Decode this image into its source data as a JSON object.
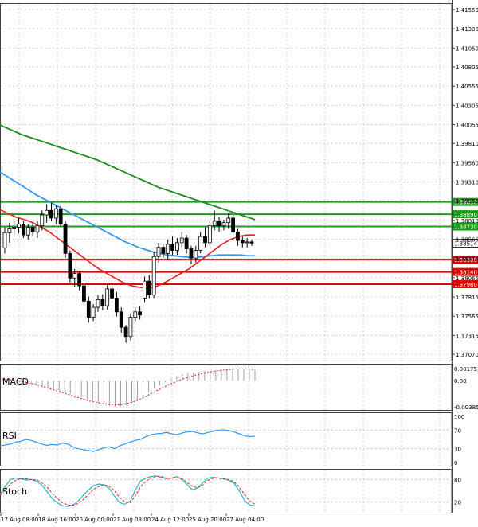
{
  "chart_data": {
    "type": "candlestick",
    "panels": {
      "price": {
        "y_ticks": [
          "1.41550",
          "1.41300",
          "1.41050",
          "1.40805",
          "1.40555",
          "1.40305",
          "1.40055",
          "1.39810",
          "1.39560",
          "1.39310",
          "1.39065",
          "1.38810",
          "1.38565",
          "1.38315",
          "1.38065",
          "1.37815",
          "1.37565",
          "1.37315",
          "1.37070"
        ],
        "ylim": [
          1.3707,
          1.416
        ],
        "h_lines": [
          {
            "value": 1.3905,
            "label": "1.39050",
            "color": "#1a9d1a"
          },
          {
            "value": 1.3889,
            "label": "1.38890",
            "color": "#1a9d1a"
          },
          {
            "value": 1.3873,
            "label": "1.38730",
            "color": "#1a9d1a"
          },
          {
            "value": 1.383,
            "label": "1.38300",
            "color": "#e00000"
          },
          {
            "value": 1.3814,
            "label": "1.38140",
            "color": "#e00000"
          },
          {
            "value": 1.3798,
            "label": "1.37980",
            "color": "#e00000"
          }
        ],
        "current_price": {
          "value": 1.38514,
          "label": "1.38514"
        },
        "candles": [
          [
            1.3845,
            1.3872,
            1.3838,
            1.3865
          ],
          [
            1.3865,
            1.3878,
            1.3852,
            1.387
          ],
          [
            1.387,
            1.388,
            1.386,
            1.3872
          ],
          [
            1.3872,
            1.3884,
            1.3864,
            1.3876
          ],
          [
            1.3876,
            1.388,
            1.3858,
            1.3862
          ],
          [
            1.3862,
            1.3876,
            1.3856,
            1.3872
          ],
          [
            1.3872,
            1.3878,
            1.386,
            1.3866
          ],
          [
            1.3866,
            1.388,
            1.3858,
            1.3874
          ],
          [
            1.3874,
            1.3894,
            1.3868,
            1.3888
          ],
          [
            1.3888,
            1.3902,
            1.3878,
            1.3894
          ],
          [
            1.3894,
            1.3904,
            1.388,
            1.3884
          ],
          [
            1.3884,
            1.39,
            1.3876,
            1.3896
          ],
          [
            1.3896,
            1.3902,
            1.3872,
            1.3876
          ],
          [
            1.3876,
            1.388,
            1.3832,
            1.3838
          ],
          [
            1.3838,
            1.3842,
            1.38,
            1.3806
          ],
          [
            1.3806,
            1.3818,
            1.3795,
            1.3812
          ],
          [
            1.3812,
            1.3815,
            1.379,
            1.3796
          ],
          [
            1.3796,
            1.38,
            1.377,
            1.3776
          ],
          [
            1.3776,
            1.3782,
            1.3748,
            1.3755
          ],
          [
            1.3755,
            1.3772,
            1.375,
            1.3768
          ],
          [
            1.3768,
            1.3784,
            1.3762,
            1.3778
          ],
          [
            1.3778,
            1.3785,
            1.3764,
            1.377
          ],
          [
            1.377,
            1.3798,
            1.3765,
            1.3792
          ],
          [
            1.3792,
            1.3796,
            1.3774,
            1.378
          ],
          [
            1.378,
            1.3788,
            1.3756,
            1.3762
          ],
          [
            1.3762,
            1.3768,
            1.3735,
            1.3742
          ],
          [
            1.3742,
            1.3745,
            1.3722,
            1.373
          ],
          [
            1.373,
            1.376,
            1.3725,
            1.3755
          ],
          [
            1.3755,
            1.3768,
            1.375,
            1.3762
          ],
          [
            1.3762,
            1.377,
            1.3752,
            1.3758
          ],
          [
            1.378,
            1.3808,
            1.3775,
            1.3802
          ],
          [
            1.3802,
            1.381,
            1.378,
            1.3784
          ],
          [
            1.3784,
            1.384,
            1.378,
            1.3834
          ],
          [
            1.3834,
            1.3852,
            1.3826,
            1.3846
          ],
          [
            1.3846,
            1.385,
            1.3832,
            1.3838
          ],
          [
            1.3838,
            1.3856,
            1.383,
            1.385
          ],
          [
            1.385,
            1.386,
            1.3836,
            1.3842
          ],
          [
            1.3842,
            1.3858,
            1.3836,
            1.3852
          ],
          [
            1.3852,
            1.3866,
            1.3846,
            1.3858
          ],
          [
            1.3858,
            1.3862,
            1.3838,
            1.3844
          ],
          [
            1.3844,
            1.3848,
            1.3824,
            1.3832
          ],
          [
            1.3832,
            1.3848,
            1.3826,
            1.3842
          ],
          [
            1.3842,
            1.3866,
            1.3838,
            1.386
          ],
          [
            1.386,
            1.3872,
            1.3846,
            1.3852
          ],
          [
            1.3852,
            1.388,
            1.3848,
            1.3874
          ],
          [
            1.3874,
            1.3894,
            1.3868,
            1.388
          ],
          [
            1.388,
            1.3886,
            1.3866,
            1.3874
          ],
          [
            1.3874,
            1.3882,
            1.3868,
            1.3878
          ],
          [
            1.3878,
            1.389,
            1.387,
            1.3884
          ],
          [
            1.3884,
            1.3888,
            1.386,
            1.3866
          ],
          [
            1.3866,
            1.387,
            1.3848,
            1.3855
          ],
          [
            1.3855,
            1.386,
            1.3846,
            1.3852
          ],
          [
            1.3852,
            1.3858,
            1.3846,
            1.3853
          ],
          [
            1.3853,
            1.3856,
            1.3848,
            1.38514
          ]
        ],
        "ma_green": [
          1.4005,
          1.4001,
          1.3997,
          1.3993,
          1.399,
          1.3987,
          1.3984,
          1.3981,
          1.3978,
          1.3975,
          1.3972,
          1.3969,
          1.3966,
          1.3963,
          1.396,
          1.3956,
          1.3952,
          1.3948,
          1.3944,
          1.394,
          1.3936,
          1.3932,
          1.3928,
          1.3924,
          1.3921,
          1.3918,
          1.3915,
          1.3912,
          1.3909,
          1.3906,
          1.3903,
          1.39,
          1.3897,
          1.3894,
          1.3891,
          1.3888,
          1.3885,
          1.3882
        ],
        "ma_blue": [
          1.3944,
          1.3938,
          1.3932,
          1.3926,
          1.392,
          1.3914,
          1.3909,
          1.3904,
          1.3899,
          1.3894,
          1.3889,
          1.3884,
          1.3879,
          1.3874,
          1.3869,
          1.3864,
          1.3859,
          1.3854,
          1.385,
          1.3846,
          1.3843,
          1.384,
          1.3838,
          1.3836,
          1.3835,
          1.3834,
          1.3833,
          1.3833,
          1.3834,
          1.3835,
          1.3836,
          1.3836,
          1.3836,
          1.3836,
          1.3835,
          1.3835
        ],
        "ma_red": [
          1.3895,
          1.389,
          1.3885,
          1.3882,
          1.3878,
          1.3872,
          1.3866,
          1.3858,
          1.385,
          1.3842,
          1.3834,
          1.3826,
          1.3818,
          1.3812,
          1.3806,
          1.38,
          1.3796,
          1.3794,
          1.3793,
          1.3795,
          1.38,
          1.3806,
          1.3812,
          1.3818,
          1.3826,
          1.3834,
          1.3842,
          1.385,
          1.3856,
          1.386,
          1.3862,
          1.3862
        ]
      },
      "macd": {
        "label": "MACD",
        "y_ticks": [
          "0.001753",
          "0.00",
          "-0.003854"
        ],
        "ylim": [
          -0.003854,
          0.001753
        ],
        "histogram": [
          0.0004,
          0.0002,
          0.0,
          -0.0001,
          -0.0003,
          -0.0005,
          -0.0008,
          -0.001,
          -0.0012,
          -0.0014,
          -0.0016,
          -0.0018,
          -0.002,
          -0.0022,
          -0.0024,
          -0.0027,
          -0.003,
          -0.0033,
          -0.0035,
          -0.0037,
          -0.0038,
          -0.0038,
          -0.0036,
          -0.0033,
          -0.0029,
          -0.0024,
          -0.0018,
          -0.0012,
          -0.0007,
          -0.0002,
          0.0003,
          0.0006,
          0.0009,
          0.0011,
          0.0012,
          0.0013,
          0.0014,
          0.0014,
          0.0015,
          0.0016,
          0.0016,
          0.0017,
          0.0017,
          0.0017,
          0.0016,
          0.0015
        ],
        "signal": [
          0.0002,
          0.0001,
          0.0,
          -0.0002,
          -0.0004,
          -0.0006,
          -0.0009,
          -0.0012,
          -0.0015,
          -0.0018,
          -0.0021,
          -0.0024,
          -0.0027,
          -0.003,
          -0.0032,
          -0.0034,
          -0.0035,
          -0.0036,
          -0.0035,
          -0.0033,
          -0.003,
          -0.0026,
          -0.0021,
          -0.0016,
          -0.0011,
          -0.0006,
          -0.0002,
          0.0002,
          0.0005,
          0.0008,
          0.001,
          0.0012,
          0.0014,
          0.0015,
          0.0016,
          0.0017,
          0.0017,
          0.0017,
          0.0016
        ]
      },
      "rsi": {
        "label": "RSI",
        "y_ticks": [
          "100",
          "70",
          "30",
          "0"
        ],
        "ylim": [
          0,
          100
        ],
        "values": [
          36,
          38,
          40,
          44,
          46,
          50,
          48,
          44,
          40,
          37,
          39,
          38,
          42,
          40,
          34,
          30,
          28,
          26,
          24,
          28,
          32,
          34,
          30,
          36,
          40,
          44,
          48,
          50,
          56,
          60,
          62,
          63,
          65,
          62,
          60,
          64,
          66,
          67,
          64,
          62,
          65,
          68,
          70,
          71,
          69,
          66,
          62,
          58,
          56,
          57
        ]
      },
      "stoch": {
        "label": "Stoch",
        "y_ticks": [
          "80",
          "20"
        ],
        "ylim": [
          0,
          100
        ],
        "k": [
          40,
          62,
          80,
          84,
          82,
          79,
          80,
          76,
          66,
          48,
          30,
          18,
          10,
          8,
          12,
          22,
          38,
          52,
          64,
          68,
          66,
          56,
          36,
          18,
          14,
          22,
          52,
          76,
          84,
          88,
          90,
          86,
          82,
          84,
          88,
          80,
          66,
          52,
          58,
          72,
          84,
          86,
          84,
          82,
          78,
          70,
          50,
          24,
          12,
          10
        ],
        "d": [
          38,
          52,
          68,
          78,
          82,
          82,
          80,
          79,
          72,
          60,
          44,
          30,
          18,
          12,
          11,
          16,
          26,
          40,
          54,
          62,
          66,
          62,
          50,
          32,
          20,
          18,
          36,
          60,
          76,
          84,
          88,
          88,
          84,
          84,
          86,
          82,
          72,
          62,
          58,
          66,
          78,
          84,
          84,
          82,
          80,
          74,
          60,
          40,
          22,
          14
        ]
      }
    },
    "x_labels": [
      "17 Aug 08:00",
      "18 Aug 16:00",
      "20 Aug 00:00",
      "21 Aug 08:00",
      "24 Aug 12:00",
      "25 Aug 20:00",
      "27 Aug 04:00"
    ]
  }
}
